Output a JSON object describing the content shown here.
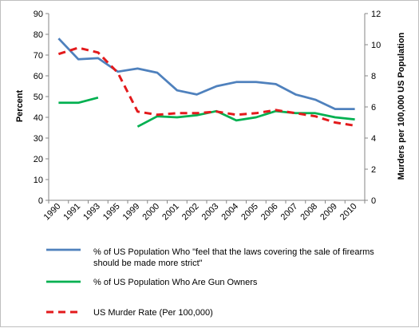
{
  "chart_data": {
    "type": "line",
    "categories": [
      "1990",
      "1991",
      "1993",
      "1995",
      "1999",
      "2000",
      "2001",
      "2002",
      "2003",
      "2004",
      "2005",
      "2006",
      "2007",
      "2008",
      "2009",
      "2010"
    ],
    "y_left": {
      "label": "Percent",
      "range": [
        0,
        90
      ],
      "ticks": [
        "0",
        "10",
        "20",
        "30",
        "40",
        "50",
        "60",
        "70",
        "80",
        "90"
      ]
    },
    "y_right": {
      "label": "Murders per 100,000 US Population",
      "range": [
        0,
        12
      ],
      "ticks": [
        "0",
        "2",
        "4",
        "6",
        "8",
        "10",
        "12"
      ]
    },
    "grid": false,
    "legend_position": "bottom",
    "series": [
      {
        "name": "% of US Population Who \"feel that the laws covering the sale of firearms should be made more strict\"",
        "legend_lines": [
          "% of US Population Who \"feel that the laws covering the sale of firearms",
          "should be made more strict\""
        ],
        "axis": "left",
        "color": "#4f81bd",
        "dash": "solid",
        "values": [
          78,
          68,
          68.5,
          62,
          63.5,
          61.5,
          53,
          51,
          55,
          57,
          57,
          56,
          51,
          48.5,
          44,
          44
        ]
      },
      {
        "name": "% of US Population Who Are Gun Owners",
        "legend_lines": [
          "% of US Population Who Are Gun Owners"
        ],
        "axis": "left",
        "color": "#00b050",
        "dash": "solid",
        "values": [
          47,
          47,
          49.5,
          null,
          35.5,
          40.5,
          40,
          41,
          43,
          38.5,
          40,
          43,
          42,
          42,
          40,
          39
        ]
      },
      {
        "name": "US Murder Rate (Per 100,000)",
        "legend_lines": [
          "US Murder Rate (Per 100,000)"
        ],
        "axis": "right",
        "color": "#e31a1c",
        "dash": "dashed",
        "values": [
          9.4,
          9.8,
          9.5,
          8.2,
          5.7,
          5.5,
          5.6,
          5.6,
          5.7,
          5.5,
          5.6,
          5.8,
          5.6,
          5.4,
          5.0,
          4.8
        ]
      }
    ]
  }
}
